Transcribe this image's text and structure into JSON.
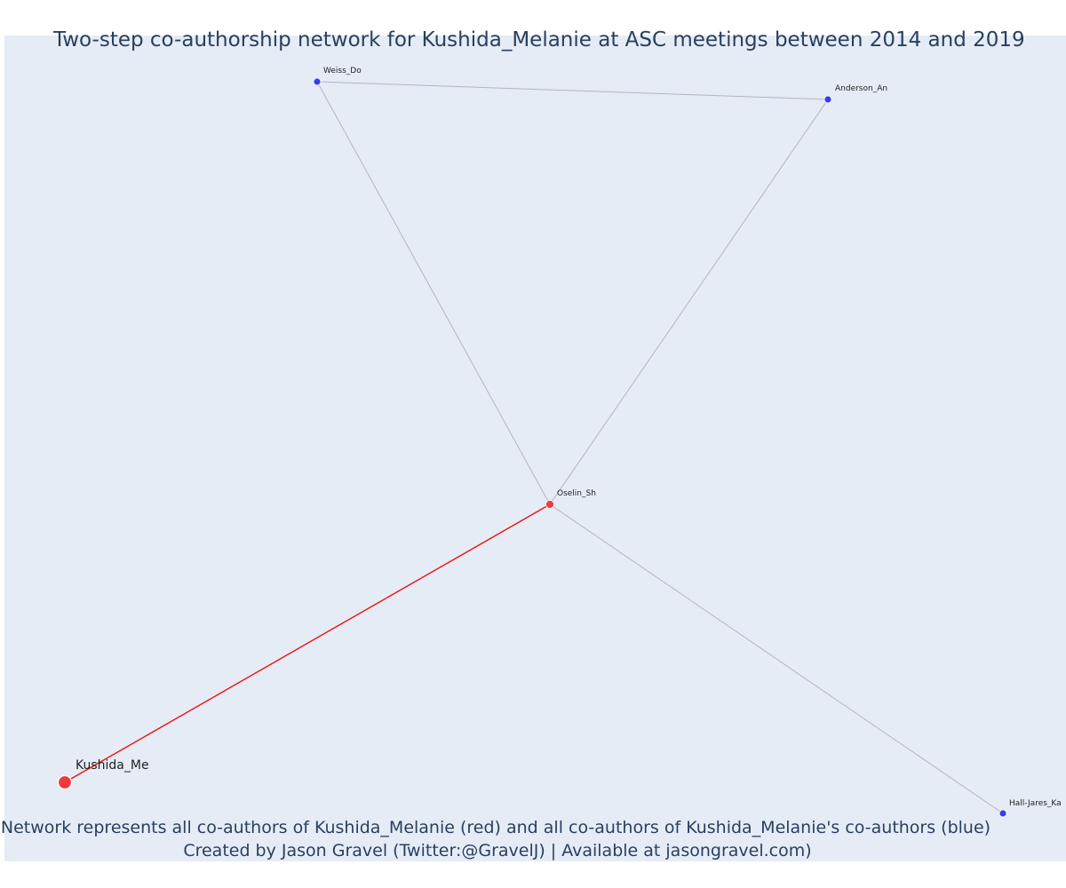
{
  "title": "Two-step co-authorship network for Kushida_Melanie at ASC meetings between 2014 and 2019",
  "footer": {
    "line1": "Network represents all co-authors of Kushida_Melanie (red) and all co-authors of Kushida_Melanie's co-authors (blue)",
    "line2": "Created by Jason Gravel (Twitter:@GravelJ) | Available at jasongravel.com)"
  },
  "colors": {
    "plot_background": "#e5ecf6",
    "title_text": "#2a3f5f",
    "first_degree_edge": "#ee1111",
    "second_degree_edge": "#b4b4c4",
    "red_node": "#ee3b3b",
    "blue_node": "#3b3bee"
  },
  "network": {
    "nodes": [
      {
        "id": "kushida",
        "label": "Kushida_Me",
        "group": "red",
        "focal": true
      },
      {
        "id": "oselin",
        "label": "Oselin_Sh",
        "group": "red",
        "focal": false
      },
      {
        "id": "weiss",
        "label": "Weiss_Do",
        "group": "blue",
        "focal": false
      },
      {
        "id": "anderson",
        "label": "Anderson_An",
        "group": "blue",
        "focal": false
      },
      {
        "id": "halljares",
        "label": "Hall-Jares_Ka",
        "group": "blue",
        "focal": false
      }
    ],
    "edges": [
      {
        "source": "kushida",
        "target": "oselin",
        "type": "first-degree"
      },
      {
        "source": "oselin",
        "target": "weiss",
        "type": "second-degree"
      },
      {
        "source": "oselin",
        "target": "anderson",
        "type": "second-degree"
      },
      {
        "source": "oselin",
        "target": "halljares",
        "type": "second-degree"
      },
      {
        "source": "weiss",
        "target": "anderson",
        "type": "second-degree"
      }
    ]
  }
}
